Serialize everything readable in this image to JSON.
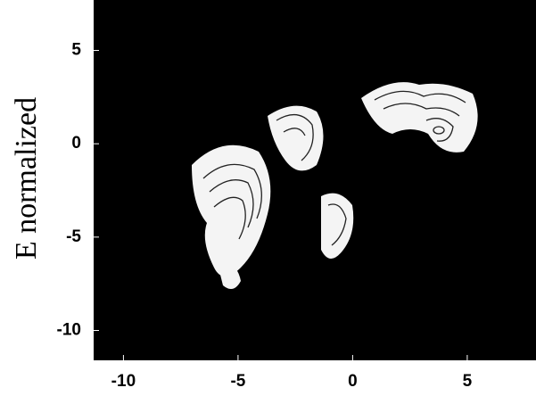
{
  "chart_data": {
    "type": "contour",
    "ylabel": "E normalized",
    "xlim": [
      -11.3,
      8.0
    ],
    "xticks": [
      -10,
      -5,
      0,
      5
    ],
    "ylim": [
      -11.6,
      7.7
    ],
    "yticks": [
      5,
      0,
      -5,
      -10
    ]
  }
}
